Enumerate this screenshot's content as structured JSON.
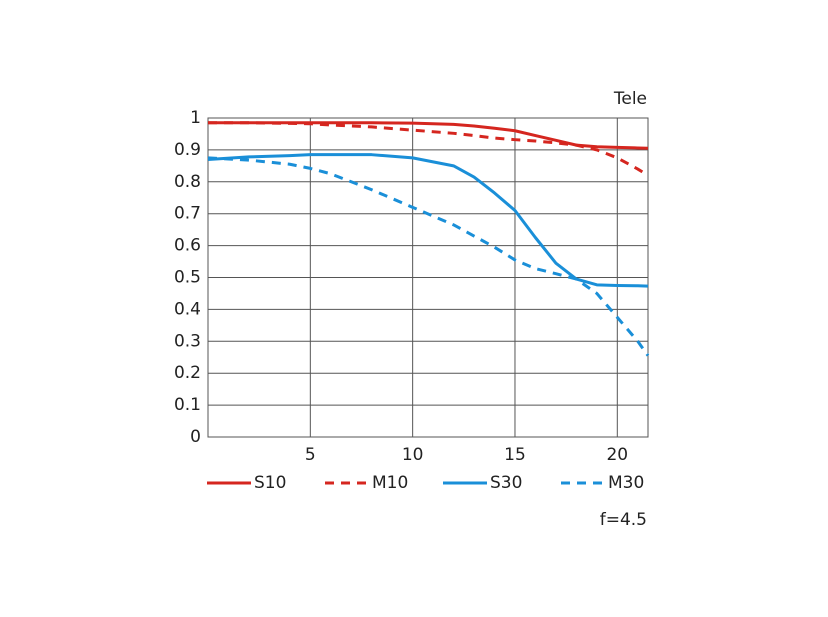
{
  "chart_data": {
    "type": "line",
    "title": "Tele",
    "note": "f=4.5",
    "x": [
      0,
      2,
      4,
      5,
      6,
      8,
      10,
      12,
      13,
      14,
      15,
      16,
      17,
      18,
      19,
      20,
      21,
      21.5
    ],
    "series": [
      {
        "name": "S10",
        "color": "#d5261f",
        "style": "solid",
        "values": [
          0.985,
          0.985,
          0.985,
          0.985,
          0.985,
          0.985,
          0.984,
          0.98,
          0.975,
          0.968,
          0.96,
          0.945,
          0.93,
          0.915,
          0.91,
          0.908,
          0.906,
          0.905
        ]
      },
      {
        "name": "M10",
        "color": "#d5261f",
        "style": "dashed",
        "values": [
          0.985,
          0.985,
          0.983,
          0.982,
          0.978,
          0.972,
          0.962,
          0.952,
          0.945,
          0.937,
          0.932,
          0.928,
          0.922,
          0.915,
          0.9,
          0.875,
          0.84,
          0.82
        ]
      },
      {
        "name": "S30",
        "color": "#1a8fd8",
        "style": "solid",
        "values": [
          0.87,
          0.878,
          0.882,
          0.885,
          0.885,
          0.885,
          0.875,
          0.85,
          0.815,
          0.765,
          0.71,
          0.625,
          0.545,
          0.495,
          0.477,
          0.475,
          0.474,
          0.473
        ]
      },
      {
        "name": "M30",
        "color": "#1a8fd8",
        "style": "dashed",
        "values": [
          0.875,
          0.868,
          0.855,
          0.842,
          0.825,
          0.775,
          0.72,
          0.665,
          0.63,
          0.595,
          0.555,
          0.528,
          0.512,
          0.495,
          0.45,
          0.375,
          0.3,
          0.255
        ]
      }
    ],
    "xlim": [
      0,
      21.5
    ],
    "xticks": [
      5,
      10,
      15,
      20
    ],
    "ylim": [
      0,
      1
    ],
    "yticks": [
      0,
      0.1,
      0.2,
      0.3,
      0.4,
      0.5,
      0.6,
      0.7,
      0.8,
      0.9,
      1
    ],
    "grid": true,
    "legend": "bottom"
  }
}
